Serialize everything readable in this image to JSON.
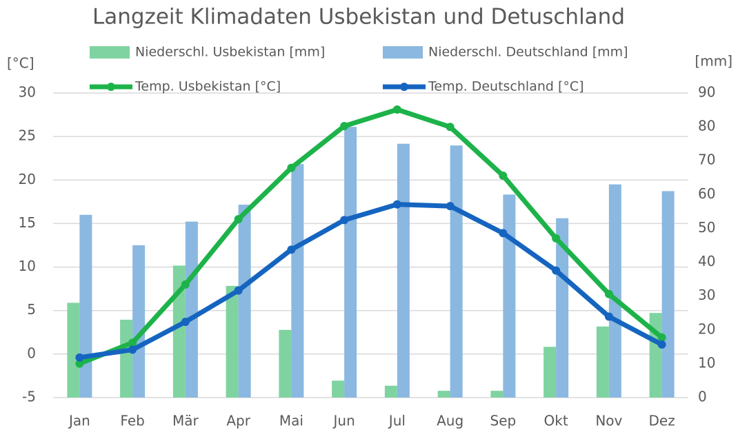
{
  "chart_data": {
    "type": "combo",
    "title": "Langzeit Klimadaten Usbekistan und Detuschland",
    "y_label": "[°C]",
    "y2_label": "[mm]",
    "categories": [
      "Jan",
      "Feb",
      "Mär",
      "Apr",
      "Mai",
      "Jun",
      "Jul",
      "Aug",
      "Sep",
      "Okt",
      "Nov",
      "Dez"
    ],
    "series": [
      {
        "name": "Niederschl. Usbekistan [mm]",
        "type": "bar",
        "axis": "y2",
        "color": "#7fd3a0",
        "values": [
          28,
          23,
          39,
          33,
          20,
          5,
          3.5,
          2,
          2,
          15,
          21,
          25
        ]
      },
      {
        "name": "Niederschl. Deutschland [mm]",
        "type": "bar",
        "axis": "y2",
        "color": "#8ab8e0",
        "values": [
          54,
          45,
          52,
          57,
          69,
          80,
          75,
          74.5,
          60,
          53,
          63,
          61
        ]
      },
      {
        "name": "Temp. Usbekistan [°C]",
        "type": "line",
        "axis": "y",
        "color": "#1db34a",
        "values": [
          -1.1,
          1.3,
          8.0,
          15.5,
          21.4,
          26.2,
          28.1,
          26.1,
          20.5,
          13.3,
          6.9,
          1.9
        ]
      },
      {
        "name": "Temp. Deutschland [°C]",
        "type": "line",
        "axis": "y",
        "color": "#1565c0",
        "values": [
          -0.4,
          0.5,
          3.7,
          7.3,
          12.0,
          15.4,
          17.2,
          17.0,
          13.9,
          9.6,
          4.3,
          1.1
        ]
      }
    ],
    "ylim": [
      -5,
      30
    ],
    "yticks": [
      -5,
      0,
      5,
      10,
      15,
      20,
      25,
      30
    ],
    "y2lim": [
      0,
      90
    ],
    "y2ticks": [
      0,
      10,
      20,
      30,
      40,
      50,
      60,
      70,
      80,
      90
    ],
    "grid": true,
    "legend": "top"
  }
}
